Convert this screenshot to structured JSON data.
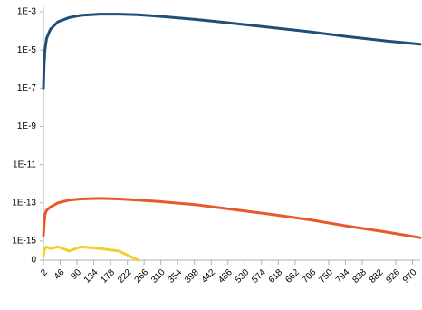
{
  "chart_data": {
    "type": "line",
    "log_scale_y": true,
    "x": [
      2,
      4,
      6,
      10,
      20,
      40,
      70,
      100,
      150,
      200,
      250,
      300,
      400,
      500,
      600,
      700,
      800,
      900,
      990
    ],
    "series": [
      {
        "name": null,
        "color": "#1f4e79",
        "values": [
          1e-07,
          2e-06,
          1e-05,
          4e-05,
          0.00012,
          0.0003,
          0.0005,
          0.00065,
          0.00075,
          0.00075,
          0.0007,
          0.0006,
          0.0004,
          0.00025,
          0.00015,
          9e-05,
          5e-05,
          3e-05,
          2e-05
        ]
      },
      {
        "name": null,
        "color": "#e8582a",
        "values": [
          2e-15,
          8e-15,
          2.5e-14,
          4e-14,
          6e-14,
          1e-13,
          1.4e-13,
          1.6e-13,
          1.7e-13,
          1.6e-13,
          1.4e-13,
          1.2e-13,
          8e-14,
          4.5e-14,
          2.5e-14,
          1.3e-14,
          6e-15,
          3e-15,
          1.5e-15
        ]
      },
      {
        "name": null,
        "color": "#f2cf2e",
        "values": [
          1.5e-16,
          3e-16,
          4e-16,
          5e-16,
          4e-16,
          5e-16,
          3e-16,
          5e-16,
          4e-16,
          3e-16,
          1e-16,
          null,
          null,
          null,
          null,
          null,
          null,
          null,
          null
        ]
      }
    ],
    "xlim": [
      2,
      990
    ],
    "xticks": [
      2,
      46,
      90,
      134,
      178,
      222,
      266,
      310,
      354,
      398,
      442,
      486,
      530,
      574,
      618,
      662,
      706,
      750,
      794,
      838,
      882,
      926,
      970
    ],
    "ylim": [
      1e-16,
      0.001
    ],
    "yticks": [
      {
        "value": 1e-16,
        "label": "0"
      },
      {
        "value": 1e-15,
        "label": "1E-15"
      },
      {
        "value": 1e-13,
        "label": "1E-13"
      },
      {
        "value": 1e-11,
        "label": "1E-11"
      },
      {
        "value": 1e-09,
        "label": "1E-9"
      },
      {
        "value": 1e-07,
        "label": "1E-7"
      },
      {
        "value": 1e-05,
        "label": "1E-5"
      },
      {
        "value": 0.001,
        "label": "1E-3"
      }
    ]
  }
}
